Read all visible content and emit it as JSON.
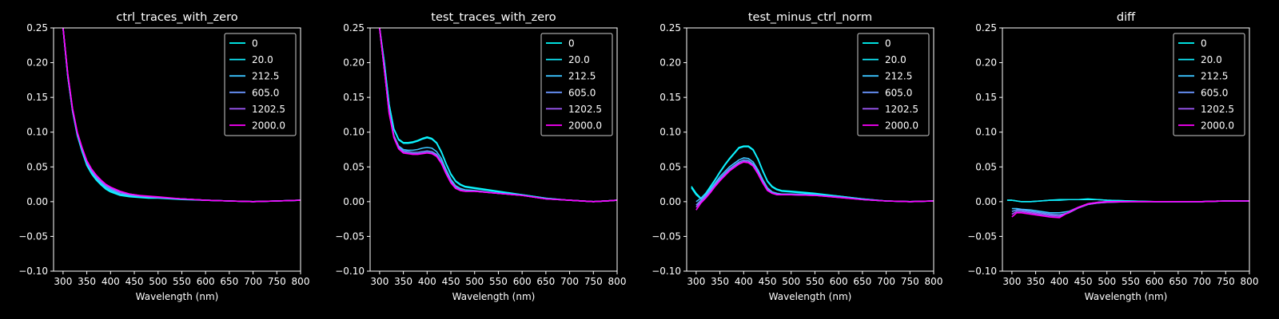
{
  "figure": {
    "background": "#000000",
    "foreground": "#ffffff"
  },
  "chart_data": [
    {
      "type": "line",
      "title": "ctrl_traces_with_zero",
      "xlabel": "Wavelength (nm)",
      "ylabel": "",
      "xlim": [
        280,
        800
      ],
      "ylim": [
        -0.1,
        0.25
      ],
      "xticks": [
        "300",
        "350",
        "400",
        "450",
        "500",
        "550",
        "600",
        "650",
        "700",
        "750",
        "800"
      ],
      "yticks": [
        "−0.10",
        "−0.05",
        "0.00",
        "0.05",
        "0.10",
        "0.15",
        "0.20",
        "0.25"
      ],
      "grid": false,
      "legend": "upper right",
      "x": [
        300,
        310,
        320,
        330,
        340,
        350,
        360,
        370,
        380,
        390,
        400,
        420,
        440,
        460,
        480,
        500,
        550,
        600,
        650,
        700,
        750,
        800
      ],
      "series": [
        {
          "name": "0",
          "color": "#00ffff",
          "values": [
            0.25,
            0.18,
            0.13,
            0.095,
            0.072,
            0.052,
            0.04,
            0.031,
            0.024,
            0.018,
            0.014,
            0.009,
            0.007,
            0.006,
            0.005,
            0.005,
            0.003,
            0.002,
            0.001,
            0.0,
            0.001,
            0.002
          ]
        },
        {
          "name": "20.0",
          "color": "#11eeff",
          "values": [
            0.25,
            0.18,
            0.13,
            0.096,
            0.073,
            0.053,
            0.041,
            0.032,
            0.025,
            0.019,
            0.015,
            0.01,
            0.008,
            0.007,
            0.006,
            0.006,
            0.004,
            0.002,
            0.001,
            0.0,
            0.001,
            0.002
          ]
        },
        {
          "name": "212.5",
          "color": "#3bc4ff",
          "values": [
            0.25,
            0.18,
            0.131,
            0.097,
            0.074,
            0.055,
            0.043,
            0.034,
            0.027,
            0.021,
            0.017,
            0.011,
            0.009,
            0.008,
            0.007,
            0.006,
            0.004,
            0.002,
            0.001,
            0.0,
            0.001,
            0.002
          ]
        },
        {
          "name": "605.0",
          "color": "#6a95ff",
          "values": [
            0.25,
            0.182,
            0.132,
            0.098,
            0.076,
            0.057,
            0.045,
            0.036,
            0.029,
            0.023,
            0.019,
            0.013,
            0.01,
            0.008,
            0.007,
            0.006,
            0.004,
            0.002,
            0.001,
            0.0,
            0.001,
            0.002
          ]
        },
        {
          "name": "1202.5",
          "color": "#a45bff",
          "values": [
            0.25,
            0.183,
            0.133,
            0.099,
            0.077,
            0.058,
            0.046,
            0.037,
            0.03,
            0.024,
            0.02,
            0.014,
            0.011,
            0.009,
            0.007,
            0.006,
            0.004,
            0.002,
            0.001,
            0.0,
            0.001,
            0.002
          ]
        },
        {
          "name": "2000.0",
          "color": "#ff00ff",
          "values": [
            0.25,
            0.184,
            0.134,
            0.1,
            0.078,
            0.059,
            0.047,
            0.038,
            0.031,
            0.025,
            0.021,
            0.015,
            0.011,
            0.009,
            0.008,
            0.007,
            0.004,
            0.002,
            0.001,
            0.0,
            0.001,
            0.002
          ]
        }
      ]
    },
    {
      "type": "line",
      "title": "test_traces_with_zero",
      "xlabel": "Wavelength (nm)",
      "ylabel": "",
      "xlim": [
        280,
        800
      ],
      "ylim": [
        -0.1,
        0.25
      ],
      "xticks": [
        "300",
        "350",
        "400",
        "450",
        "500",
        "550",
        "600",
        "650",
        "700",
        "750",
        "800"
      ],
      "yticks": [
        "−0.10",
        "−0.05",
        "0.00",
        "0.05",
        "0.10",
        "0.15",
        "0.20",
        "0.25"
      ],
      "grid": false,
      "legend": "upper right",
      "x": [
        300,
        310,
        320,
        330,
        340,
        350,
        360,
        370,
        380,
        390,
        400,
        410,
        420,
        430,
        440,
        450,
        460,
        470,
        480,
        500,
        550,
        600,
        650,
        700,
        750,
        800
      ],
      "series": [
        {
          "name": "0",
          "color": "#00ffff",
          "values": [
            0.25,
            0.2,
            0.14,
            0.105,
            0.09,
            0.085,
            0.085,
            0.086,
            0.088,
            0.091,
            0.093,
            0.091,
            0.085,
            0.072,
            0.055,
            0.04,
            0.03,
            0.025,
            0.022,
            0.02,
            0.015,
            0.01,
            0.005,
            0.002,
            0.0,
            0.002
          ]
        },
        {
          "name": "20.0",
          "color": "#11eeff",
          "values": [
            0.25,
            0.2,
            0.14,
            0.104,
            0.089,
            0.084,
            0.084,
            0.085,
            0.087,
            0.09,
            0.092,
            0.09,
            0.084,
            0.071,
            0.054,
            0.039,
            0.029,
            0.024,
            0.021,
            0.019,
            0.014,
            0.01,
            0.005,
            0.002,
            0.0,
            0.002
          ]
        },
        {
          "name": "212.5",
          "color": "#3bc4ff",
          "values": [
            0.25,
            0.19,
            0.13,
            0.095,
            0.08,
            0.075,
            0.074,
            0.074,
            0.075,
            0.077,
            0.078,
            0.077,
            0.072,
            0.062,
            0.046,
            0.032,
            0.023,
            0.019,
            0.017,
            0.016,
            0.012,
            0.009,
            0.004,
            0.002,
            0.0,
            0.002
          ]
        },
        {
          "name": "605.0",
          "color": "#6a95ff",
          "values": [
            0.25,
            0.19,
            0.13,
            0.095,
            0.079,
            0.073,
            0.072,
            0.071,
            0.071,
            0.072,
            0.073,
            0.072,
            0.068,
            0.058,
            0.043,
            0.03,
            0.021,
            0.017,
            0.015,
            0.015,
            0.012,
            0.009,
            0.004,
            0.002,
            0.0,
            0.002
          ]
        },
        {
          "name": "1202.5",
          "color": "#a45bff",
          "values": [
            0.25,
            0.19,
            0.128,
            0.093,
            0.077,
            0.071,
            0.07,
            0.069,
            0.069,
            0.07,
            0.071,
            0.07,
            0.066,
            0.056,
            0.041,
            0.028,
            0.02,
            0.016,
            0.015,
            0.015,
            0.012,
            0.009,
            0.004,
            0.002,
            0.0,
            0.002
          ]
        },
        {
          "name": "2000.0",
          "color": "#ff00ff",
          "values": [
            0.25,
            0.19,
            0.127,
            0.092,
            0.076,
            0.07,
            0.069,
            0.068,
            0.068,
            0.069,
            0.07,
            0.069,
            0.065,
            0.055,
            0.04,
            0.027,
            0.019,
            0.016,
            0.015,
            0.015,
            0.012,
            0.009,
            0.004,
            0.002,
            0.0,
            0.002
          ]
        }
      ]
    },
    {
      "type": "line",
      "title": "test_minus_ctrl_norm",
      "xlabel": "Wavelength (nm)",
      "ylabel": "",
      "xlim": [
        280,
        800
      ],
      "ylim": [
        -0.1,
        0.25
      ],
      "xticks": [
        "300",
        "350",
        "400",
        "450",
        "500",
        "550",
        "600",
        "650",
        "700",
        "750",
        "800"
      ],
      "yticks": [
        "−0.10",
        "−0.05",
        "0.00",
        "0.05",
        "0.10",
        "0.15",
        "0.20",
        "0.25"
      ],
      "grid": false,
      "legend": "upper right",
      "x": [
        290,
        300,
        310,
        320,
        330,
        340,
        350,
        360,
        370,
        380,
        390,
        400,
        410,
        420,
        430,
        440,
        450,
        460,
        470,
        480,
        500,
        550,
        600,
        650,
        700,
        750,
        800
      ],
      "series": [
        {
          "name": "0",
          "color": "#00ffff",
          "values": [
            0.022,
            0.012,
            0.005,
            0.012,
            0.022,
            0.032,
            0.043,
            0.053,
            0.062,
            0.07,
            0.078,
            0.08,
            0.08,
            0.075,
            0.062,
            0.045,
            0.03,
            0.022,
            0.018,
            0.016,
            0.015,
            0.012,
            0.008,
            0.004,
            0.001,
            0.0,
            0.001
          ]
        },
        {
          "name": "20.0",
          "color": "#11eeff",
          "values": [
            0.02,
            0.01,
            0.004,
            0.011,
            0.021,
            0.031,
            0.042,
            0.052,
            0.061,
            0.069,
            0.077,
            0.079,
            0.079,
            0.074,
            0.061,
            0.044,
            0.029,
            0.021,
            0.017,
            0.015,
            0.014,
            0.011,
            0.008,
            0.004,
            0.001,
            0.0,
            0.001
          ]
        },
        {
          "name": "212.5",
          "color": "#3bc4ff",
          "values": [
            null,
            0.0,
            0.005,
            0.01,
            0.018,
            0.027,
            0.036,
            0.043,
            0.05,
            0.055,
            0.06,
            0.063,
            0.062,
            0.057,
            0.046,
            0.032,
            0.02,
            0.014,
            0.012,
            0.011,
            0.011,
            0.01,
            0.007,
            0.003,
            0.001,
            0.0,
            0.001
          ]
        },
        {
          "name": "605.0",
          "color": "#6a95ff",
          "values": [
            null,
            -0.005,
            0.002,
            0.008,
            0.016,
            0.025,
            0.033,
            0.04,
            0.047,
            0.052,
            0.057,
            0.06,
            0.059,
            0.054,
            0.043,
            0.029,
            0.018,
            0.013,
            0.011,
            0.01,
            0.01,
            0.009,
            0.007,
            0.003,
            0.001,
            0.0,
            0.001
          ]
        },
        {
          "name": "1202.5",
          "color": "#a45bff",
          "values": [
            null,
            -0.008,
            0.0,
            0.006,
            0.014,
            0.023,
            0.031,
            0.038,
            0.045,
            0.05,
            0.055,
            0.058,
            0.057,
            0.052,
            0.041,
            0.028,
            0.017,
            0.012,
            0.01,
            0.01,
            0.01,
            0.009,
            0.006,
            0.003,
            0.001,
            0.0,
            0.001
          ]
        },
        {
          "name": "2000.0",
          "color": "#ff00ff",
          "values": [
            null,
            -0.012,
            -0.002,
            0.005,
            0.013,
            0.022,
            0.03,
            0.037,
            0.044,
            0.049,
            0.054,
            0.057,
            0.056,
            0.051,
            0.04,
            0.027,
            0.016,
            0.012,
            0.01,
            0.01,
            0.01,
            0.009,
            0.006,
            0.003,
            0.001,
            0.0,
            0.001
          ]
        }
      ]
    },
    {
      "type": "line",
      "title": "diff",
      "xlabel": "Wavelength (nm)",
      "ylabel": "",
      "xlim": [
        280,
        800
      ],
      "ylim": [
        -0.1,
        0.25
      ],
      "xticks": [
        "300",
        "350",
        "400",
        "450",
        "500",
        "550",
        "600",
        "650",
        "700",
        "750",
        "800"
      ],
      "yticks": [
        "−0.10",
        "−0.05",
        "0.00",
        "0.05",
        "0.10",
        "0.15",
        "0.20",
        "0.25"
      ],
      "grid": false,
      "legend": "upper right",
      "x": [
        290,
        300,
        310,
        320,
        340,
        360,
        380,
        400,
        420,
        440,
        460,
        480,
        500,
        550,
        600,
        650,
        700,
        750,
        800
      ],
      "series": [
        {
          "name": "0",
          "color": "#00ffff",
          "values": [
            0.002,
            0.002,
            0.001,
            0.0,
            0.0,
            0.001,
            0.002,
            0.003,
            0.003,
            0.003,
            0.004,
            0.003,
            0.002,
            0.001,
            0.0,
            0.0,
            0.0,
            0.001,
            0.001
          ]
        },
        {
          "name": "20.0",
          "color": "#11eeff",
          "values": [
            0.002,
            0.002,
            0.001,
            0.0,
            0.0,
            0.001,
            0.002,
            0.002,
            0.003,
            0.003,
            0.003,
            0.003,
            0.002,
            0.001,
            0.0,
            0.0,
            0.0,
            0.001,
            0.001
          ]
        },
        {
          "name": "212.5",
          "color": "#3bc4ff",
          "values": [
            null,
            -0.01,
            -0.01,
            -0.011,
            -0.012,
            -0.014,
            -0.016,
            -0.016,
            -0.014,
            -0.008,
            -0.003,
            -0.001,
            0.0,
            0.0,
            0.0,
            0.0,
            0.0,
            0.001,
            0.001
          ]
        },
        {
          "name": "605.0",
          "color": "#6a95ff",
          "values": [
            null,
            -0.014,
            -0.012,
            -0.012,
            -0.014,
            -0.016,
            -0.018,
            -0.019,
            -0.016,
            -0.009,
            -0.004,
            -0.002,
            -0.001,
            0.0,
            0.0,
            0.0,
            0.0,
            0.001,
            0.001
          ]
        },
        {
          "name": "1202.5",
          "color": "#a45bff",
          "values": [
            null,
            -0.018,
            -0.014,
            -0.014,
            -0.016,
            -0.018,
            -0.02,
            -0.021,
            -0.016,
            -0.009,
            -0.004,
            -0.002,
            -0.001,
            0.0,
            0.0,
            0.0,
            0.0,
            0.001,
            0.001
          ]
        },
        {
          "name": "2000.0",
          "color": "#ff00ff",
          "values": [
            null,
            -0.022,
            -0.016,
            -0.016,
            -0.018,
            -0.02,
            -0.022,
            -0.023,
            -0.015,
            -0.008,
            -0.003,
            -0.001,
            0.0,
            0.0,
            0.0,
            0.0,
            0.0,
            0.001,
            0.001
          ]
        }
      ]
    }
  ]
}
